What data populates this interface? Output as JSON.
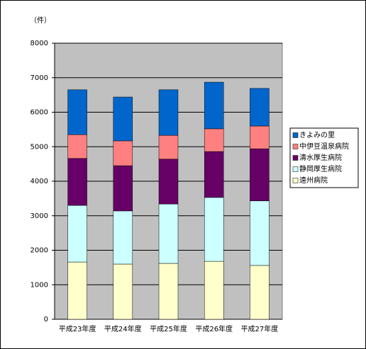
{
  "chart_data": {
    "type": "bar",
    "stacked": true,
    "y_unit_label": "（件）",
    "categories": [
      "平成23年度",
      "平成24年度",
      "平成25年度",
      "平成26年度",
      "平成27年度"
    ],
    "series": [
      {
        "name": "遠州病院",
        "color": "#ffffcc",
        "values": [
          1660,
          1600,
          1620,
          1680,
          1560
        ]
      },
      {
        "name": "静岡厚生病院",
        "color": "#ccffff",
        "values": [
          1640,
          1540,
          1720,
          1850,
          1870
        ]
      },
      {
        "name": "清水厚生病院",
        "color": "#660066",
        "values": [
          1360,
          1310,
          1300,
          1330,
          1510
        ]
      },
      {
        "name": "中伊豆温泉病院",
        "color": "#ff8080",
        "values": [
          690,
          720,
          690,
          660,
          660
        ]
      },
      {
        "name": "きよみの里",
        "color": "#0066cc",
        "values": [
          1300,
          1270,
          1320,
          1350,
          1090
        ]
      }
    ],
    "ylim": [
      0,
      8000
    ],
    "yticks": [
      0,
      1000,
      2000,
      3000,
      4000,
      5000,
      6000,
      7000,
      8000
    ],
    "grid": true,
    "legend": "right"
  }
}
